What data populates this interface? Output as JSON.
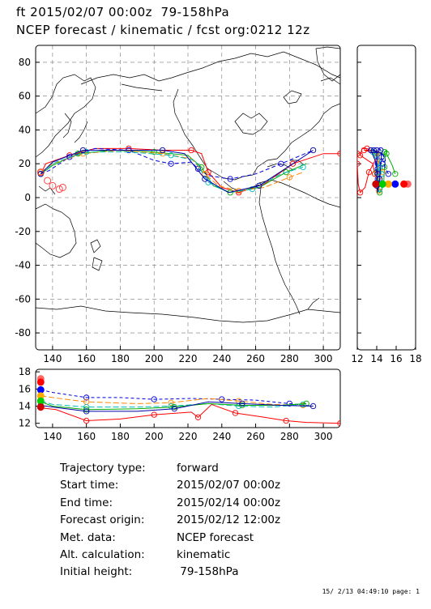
{
  "title_line1": "ft 2015/02/07 00:00z  79-158hPa",
  "title_line2": "NCEP forecast / kinematic / fcst org:0212 12z",
  "info": [
    {
      "label": "Trajectory type:",
      "value": "forward"
    },
    {
      "label": "Start time:",
      "value": "2015/02/07 00:00z"
    },
    {
      "label": "End time:",
      "value": "2015/02/14 00:00z"
    },
    {
      "label": "Forecast origin:",
      "value": "2015/02/12 12:00z"
    },
    {
      "label": "Met. data:",
      "value": "NCEP forecast"
    },
    {
      "label": "Alt. calculation:",
      "value": "kinematic"
    },
    {
      "label": "Initial height:",
      "value": "  79-158hPa"
    }
  ],
  "footer": "15/ 2/13 04:49:10 page: 1",
  "chart_data": [
    {
      "type": "line",
      "panel": "map",
      "xlim": [
        130,
        310
      ],
      "ylim": [
        -90,
        90
      ],
      "xticks": [
        140,
        160,
        180,
        200,
        220,
        240,
        260,
        280,
        300
      ],
      "yticks": [
        -80,
        -60,
        -40,
        -20,
        0,
        20,
        40,
        60,
        80
      ],
      "grid": true,
      "series": [
        {
          "color": "#ff0000",
          "dash": "",
          "points": [
            [
              133,
              14
            ],
            [
              136,
              20
            ],
            [
              150,
              25
            ],
            [
              165,
              29
            ],
            [
              185,
              29
            ],
            [
              205,
              28
            ],
            [
              222,
              28
            ],
            [
              228,
              26
            ],
            [
              232,
              15
            ],
            [
              240,
              6
            ],
            [
              250,
              3
            ],
            [
              265,
              8
            ],
            [
              282,
              20
            ],
            [
              300,
              26
            ],
            [
              310,
              26
            ]
          ]
        },
        {
          "color": "#00aa00",
          "dash": "",
          "points": [
            [
              133,
              14
            ],
            [
              140,
              19
            ],
            [
              155,
              26
            ],
            [
              175,
              28
            ],
            [
              200,
              27
            ],
            [
              220,
              25
            ],
            [
              228,
              18
            ],
            [
              235,
              7
            ],
            [
              245,
              3
            ],
            [
              262,
              6
            ],
            [
              278,
              15
            ],
            [
              290,
              20
            ]
          ]
        },
        {
          "color": "#0000dd",
          "dash": "5 3",
          "points": [
            [
              133,
              14
            ],
            [
              138,
              16
            ],
            [
              150,
              24
            ],
            [
              165,
              29
            ],
            [
              185,
              28
            ],
            [
              200,
              22
            ],
            [
              210,
              20
            ],
            [
              222,
              21
            ],
            [
              226,
              17
            ],
            [
              232,
              13
            ],
            [
              245,
              11
            ],
            [
              260,
              14
            ],
            [
              275,
              20
            ],
            [
              294,
              28
            ]
          ]
        },
        {
          "color": "#ff8800",
          "dash": "7 3",
          "points": [
            [
              133,
              15
            ],
            [
              140,
              20
            ],
            [
              158,
              26
            ],
            [
              180,
              28
            ],
            [
              205,
              26
            ],
            [
              222,
              23
            ],
            [
              230,
              14
            ],
            [
              238,
              7
            ],
            [
              250,
              4
            ],
            [
              265,
              6
            ],
            [
              280,
              12
            ],
            [
              288,
              15
            ]
          ]
        },
        {
          "color": "#00bbbb",
          "dash": "7 3",
          "points": [
            [
              133,
              14
            ],
            [
              142,
              21
            ],
            [
              160,
              27
            ],
            [
              185,
              27
            ],
            [
              210,
              25
            ],
            [
              224,
              22
            ],
            [
              232,
              9
            ],
            [
              244,
              3
            ],
            [
              258,
              5
            ],
            [
              275,
              14
            ],
            [
              288,
              18
            ]
          ]
        },
        {
          "color": "#0000aa",
          "dash": "",
          "points": [
            [
              133,
              14
            ],
            [
              140,
              21
            ],
            [
              158,
              28
            ],
            [
              180,
              28
            ],
            [
              205,
              28
            ],
            [
              218,
              26
            ],
            [
              230,
              11
            ],
            [
              244,
              3
            ],
            [
              262,
              7
            ],
            [
              282,
              20
            ],
            [
              294,
              28
            ]
          ]
        }
      ]
    },
    {
      "type": "line",
      "panel": "latitude-vs-height",
      "xlim": [
        12,
        18
      ],
      "ylim": [
        -90,
        90
      ],
      "xticks": [
        12,
        14,
        16,
        18
      ]
    },
    {
      "type": "line",
      "panel": "longitude-vs-height",
      "xlim": [
        130,
        310
      ],
      "ylim": [
        11.5,
        18.3
      ],
      "xticks": [
        140,
        160,
        180,
        200,
        220,
        240,
        260,
        280,
        300
      ],
      "yticks": [
        12,
        14,
        16,
        18
      ],
      "series": [
        {
          "color": "#ff0000",
          "dash": "",
          "points": [
            [
              133,
              13.8
            ],
            [
              142,
              13.6
            ],
            [
              160,
              12.3
            ],
            [
              180,
              12.5
            ],
            [
              200,
              13
            ],
            [
              222,
              13.3
            ],
            [
              226,
              12.7
            ],
            [
              234,
              14.2
            ],
            [
              248,
              13.2
            ],
            [
              262,
              12.8
            ],
            [
              278,
              12.3
            ],
            [
              290,
              12.1
            ],
            [
              310,
              12
            ]
          ]
        },
        {
          "color": "#0000dd",
          "dash": "4 3",
          "points": [
            [
              133,
              15.9
            ],
            [
              140,
              15.6
            ],
            [
              160,
              15
            ],
            [
              180,
              15
            ],
            [
              200,
              14.8
            ],
            [
              222,
              14.9
            ],
            [
              240,
              14.8
            ],
            [
              260,
              14.7
            ],
            [
              280,
              14.3
            ],
            [
              294,
              14
            ]
          ]
        },
        {
          "color": "#ff8800",
          "dash": "7 3",
          "points": [
            [
              133,
              15.2
            ],
            [
              140,
              15
            ],
            [
              160,
              14.5
            ],
            [
              190,
              14.3
            ],
            [
              210,
              14.4
            ],
            [
              232,
              14.9
            ],
            [
              250,
              14.6
            ],
            [
              270,
              14.2
            ],
            [
              288,
              14.1
            ]
          ]
        },
        {
          "color": "#00bbbb",
          "dash": "7 3",
          "points": [
            [
              133,
              14.6
            ],
            [
              140,
              14.2
            ],
            [
              160,
              13.9
            ],
            [
              190,
              13.9
            ],
            [
              210,
              14
            ],
            [
              232,
              14.3
            ],
            [
              250,
              14
            ],
            [
              270,
              13.9
            ],
            [
              288,
              14.2
            ]
          ]
        },
        {
          "color": "#00aa00",
          "dash": "",
          "points": [
            [
              133,
              14.5
            ],
            [
              140,
              14
            ],
            [
              160,
              13.6
            ],
            [
              190,
              13.7
            ],
            [
              212,
              13.9
            ],
            [
              232,
              14.3
            ],
            [
              252,
              14.1
            ],
            [
              275,
              14.1
            ],
            [
              290,
              14.3
            ]
          ]
        },
        {
          "color": "#0000aa",
          "dash": "",
          "points": [
            [
              133,
              14.1
            ],
            [
              140,
              13.9
            ],
            [
              160,
              13.4
            ],
            [
              190,
              13.4
            ],
            [
              212,
              13.7
            ],
            [
              232,
              14.5
            ],
            [
              252,
              14.3
            ],
            [
              275,
              14.1
            ],
            [
              294,
              14
            ]
          ]
        }
      ]
    }
  ]
}
